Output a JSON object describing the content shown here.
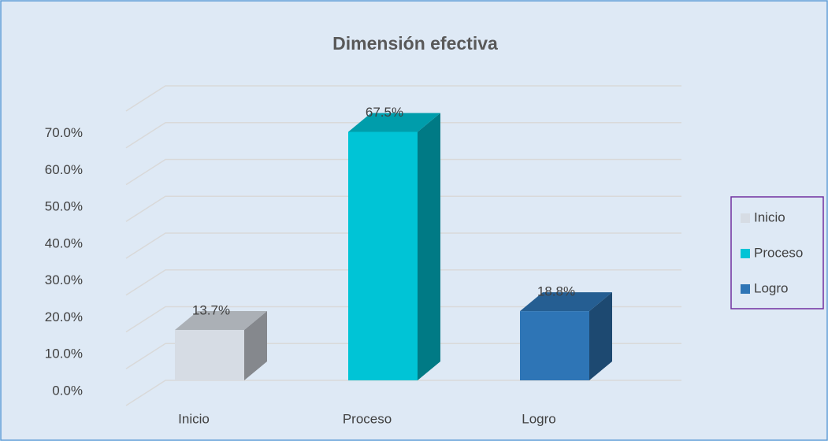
{
  "chart_data": {
    "type": "bar3d",
    "title": "Dimensión efectiva",
    "categories": [
      "Inicio",
      "Proceso",
      "Logro"
    ],
    "values": [
      13.7,
      67.5,
      18.8
    ],
    "value_labels": [
      "13.7%",
      "67.5%",
      "18.8%"
    ],
    "colors": [
      "#d6dce4",
      "#00c4d6",
      "#2e75b6"
    ],
    "ylim": [
      0,
      80
    ],
    "yticks": [
      {
        "value": 0,
        "label": "0.0%"
      },
      {
        "value": 10,
        "label": "10.0%"
      },
      {
        "value": 20,
        "label": "20.0%"
      },
      {
        "value": 30,
        "label": "30.0%"
      },
      {
        "value": 40,
        "label": "40.0%"
      },
      {
        "value": 50,
        "label": "50.0%"
      },
      {
        "value": 60,
        "label": "60.0%"
      },
      {
        "value": 70,
        "label": "70.0%"
      }
    ],
    "grid": true,
    "legend": "right"
  }
}
